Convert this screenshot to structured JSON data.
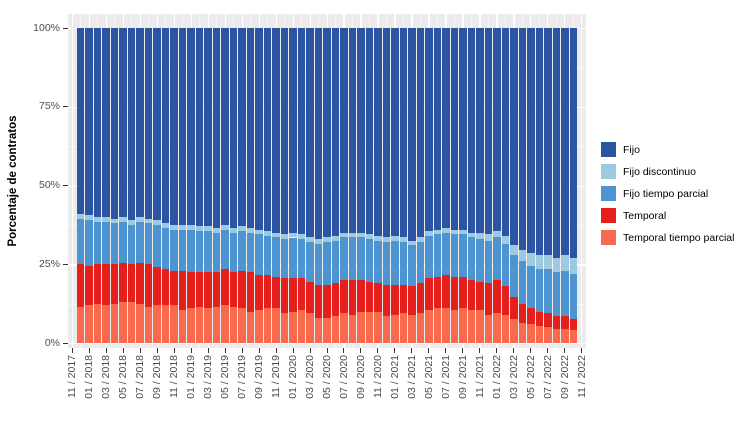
{
  "panel": {
    "background": "#ebebeb",
    "grid_color": "#ffffff",
    "tick_color": "#333333",
    "axis_text_color": "#4d4d4d"
  },
  "chart_data": {
    "type": "bar",
    "stacking": "percent",
    "title": "",
    "ylabel": "Porcentaje de contratos",
    "xlabel": "",
    "ylim": [
      0,
      100
    ],
    "grid": true,
    "legend_position": "right",
    "y_ticks": [
      {
        "value": 0,
        "label": "0%"
      },
      {
        "value": 25,
        "label": "25%"
      },
      {
        "value": 50,
        "label": "50%"
      },
      {
        "value": 75,
        "label": "75%"
      },
      {
        "value": 100,
        "label": "100%"
      }
    ],
    "x_tick_labels": [
      "11 / 2017",
      "01 / 2018",
      "03 / 2018",
      "05 / 2018",
      "07 / 2018",
      "09 / 2018",
      "11 / 2018",
      "01 / 2019",
      "03 / 2019",
      "05 / 2019",
      "07 / 2019",
      "09 / 2019",
      "11 / 2019",
      "01 / 2020",
      "03 / 2020",
      "05 / 2020",
      "07 / 2020",
      "09 / 2020",
      "11 / 2020",
      "01 / 2021",
      "03 / 2021",
      "05 / 2021",
      "07 / 2021",
      "09 / 2021",
      "11 / 2021",
      "01 / 2022",
      "03 / 2022",
      "05 / 2022",
      "07 / 2022",
      "09 / 2022",
      "11 / 2022"
    ],
    "months": [
      "12 / 2017",
      "01 / 2018",
      "02 / 2018",
      "03 / 2018",
      "04 / 2018",
      "05 / 2018",
      "06 / 2018",
      "07 / 2018",
      "08 / 2018",
      "09 / 2018",
      "10 / 2018",
      "11 / 2018",
      "12 / 2018",
      "01 / 2019",
      "02 / 2019",
      "03 / 2019",
      "04 / 2019",
      "05 / 2019",
      "06 / 2019",
      "07 / 2019",
      "08 / 2019",
      "09 / 2019",
      "10 / 2019",
      "11 / 2019",
      "12 / 2019",
      "01 / 2020",
      "02 / 2020",
      "03 / 2020",
      "04 / 2020",
      "05 / 2020",
      "06 / 2020",
      "07 / 2020",
      "08 / 2020",
      "09 / 2020",
      "10 / 2020",
      "11 / 2020",
      "12 / 2020",
      "01 / 2021",
      "02 / 2021",
      "03 / 2021",
      "04 / 2021",
      "05 / 2021",
      "06 / 2021",
      "07 / 2021",
      "08 / 2021",
      "09 / 2021",
      "10 / 2021",
      "11 / 2021",
      "12 / 2021",
      "01 / 2022",
      "02 / 2022",
      "03 / 2022",
      "04 / 2022",
      "05 / 2022",
      "06 / 2022",
      "07 / 2022",
      "08 / 2022",
      "09 / 2022",
      "10 / 2022"
    ],
    "slot_count": 61,
    "first_bar_slot": 1,
    "series": [
      {
        "name": "Temporal tiempo parcial",
        "color": "#f9694c",
        "values": [
          11.5,
          12,
          12.5,
          12,
          12.5,
          13,
          13,
          12.5,
          11.5,
          12,
          12,
          12,
          10.5,
          11,
          11.5,
          11,
          11.5,
          12,
          11.5,
          11,
          10,
          10.5,
          11,
          11,
          9.5,
          10,
          10.5,
          9.5,
          8,
          8,
          8.5,
          9.5,
          9,
          10,
          10,
          10,
          8.5,
          9,
          9.5,
          9,
          9.5,
          10.5,
          11,
          11,
          10.5,
          11,
          10.5,
          10.5,
          9,
          9.5,
          9,
          7.5,
          6.5,
          6,
          5.5,
          5,
          4.5,
          4.5,
          4
        ]
      },
      {
        "name": "Temporal",
        "color": "#e41f1c",
        "values": [
          13.5,
          12.5,
          12.5,
          13,
          12.5,
          12.5,
          12,
          13,
          13.5,
          12,
          11.5,
          11,
          12.5,
          11.5,
          11,
          11.5,
          11,
          11.5,
          11,
          12,
          12.5,
          11,
          10.5,
          10,
          11,
          10.5,
          10,
          10,
          10.5,
          10.5,
          10.5,
          10.5,
          11,
          10,
          9.5,
          9,
          10,
          9.5,
          9,
          9,
          9.5,
          10,
          10,
          10.5,
          10.5,
          10,
          9.5,
          9,
          10,
          10.5,
          9,
          7,
          6,
          5,
          4.5,
          4.5,
          4,
          4,
          3.5
        ]
      },
      {
        "name": "Fijo tiempo parcial",
        "color": "#4d94d0",
        "values": [
          14.5,
          14.5,
          13.5,
          13.5,
          13,
          13,
          12.5,
          13,
          13,
          13.5,
          13,
          13,
          13,
          13.5,
          13,
          13,
          12.5,
          12.5,
          12.5,
          12.5,
          12.5,
          13,
          12.5,
          12.5,
          12.5,
          13,
          12.5,
          12.5,
          13,
          13.5,
          13.5,
          13.5,
          13.5,
          13.5,
          13.5,
          13.5,
          13.5,
          14,
          13.5,
          13,
          13,
          13.5,
          13.5,
          13.5,
          13.5,
          13.5,
          13.5,
          13.5,
          13.5,
          13.5,
          13.5,
          13.5,
          13.5,
          13.5,
          13.5,
          14,
          14,
          14.5,
          14.5
        ]
      },
      {
        "name": "Fijo discontinuo",
        "color": "#9ecae1",
        "values": [
          1.5,
          1.5,
          1.5,
          1.5,
          1.5,
          1.5,
          1.5,
          1.5,
          1.5,
          1.5,
          1.5,
          1.5,
          1.5,
          1.5,
          1.5,
          1.5,
          1.5,
          1.5,
          1.5,
          1.5,
          1.5,
          1.5,
          1.5,
          1.5,
          1.5,
          1.5,
          1.5,
          1.5,
          1.5,
          1.5,
          1.5,
          1.5,
          1.5,
          1.5,
          1.5,
          1.5,
          1.5,
          1.5,
          1.5,
          1.5,
          1.5,
          1.5,
          1.5,
          1.5,
          1.5,
          1.5,
          1.5,
          2,
          2,
          2,
          2.5,
          3,
          3.5,
          4,
          4.5,
          4.5,
          4.5,
          5,
          5
        ]
      },
      {
        "name": "Fijo",
        "color": "#2b54a3",
        "values": [
          59,
          59.5,
          60,
          60,
          60.5,
          60,
          61,
          60,
          60.5,
          61,
          62,
          62.5,
          62.5,
          62.5,
          63,
          63,
          63.5,
          62.5,
          63.5,
          63,
          63.5,
          64,
          64.5,
          65,
          65.5,
          65,
          65.5,
          66.5,
          67,
          66.5,
          66,
          65,
          65,
          65,
          65.5,
          66,
          66.5,
          66,
          66.5,
          67.5,
          66.5,
          64.5,
          64,
          63.5,
          64,
          64,
          65,
          65,
          65.5,
          64.5,
          66,
          69,
          70.5,
          71.5,
          72,
          72,
          73,
          72,
          73
        ]
      }
    ],
    "legend_order": [
      "Fijo",
      "Fijo discontinuo",
      "Fijo tiempo parcial",
      "Temporal",
      "Temporal tiempo parcial"
    ]
  }
}
